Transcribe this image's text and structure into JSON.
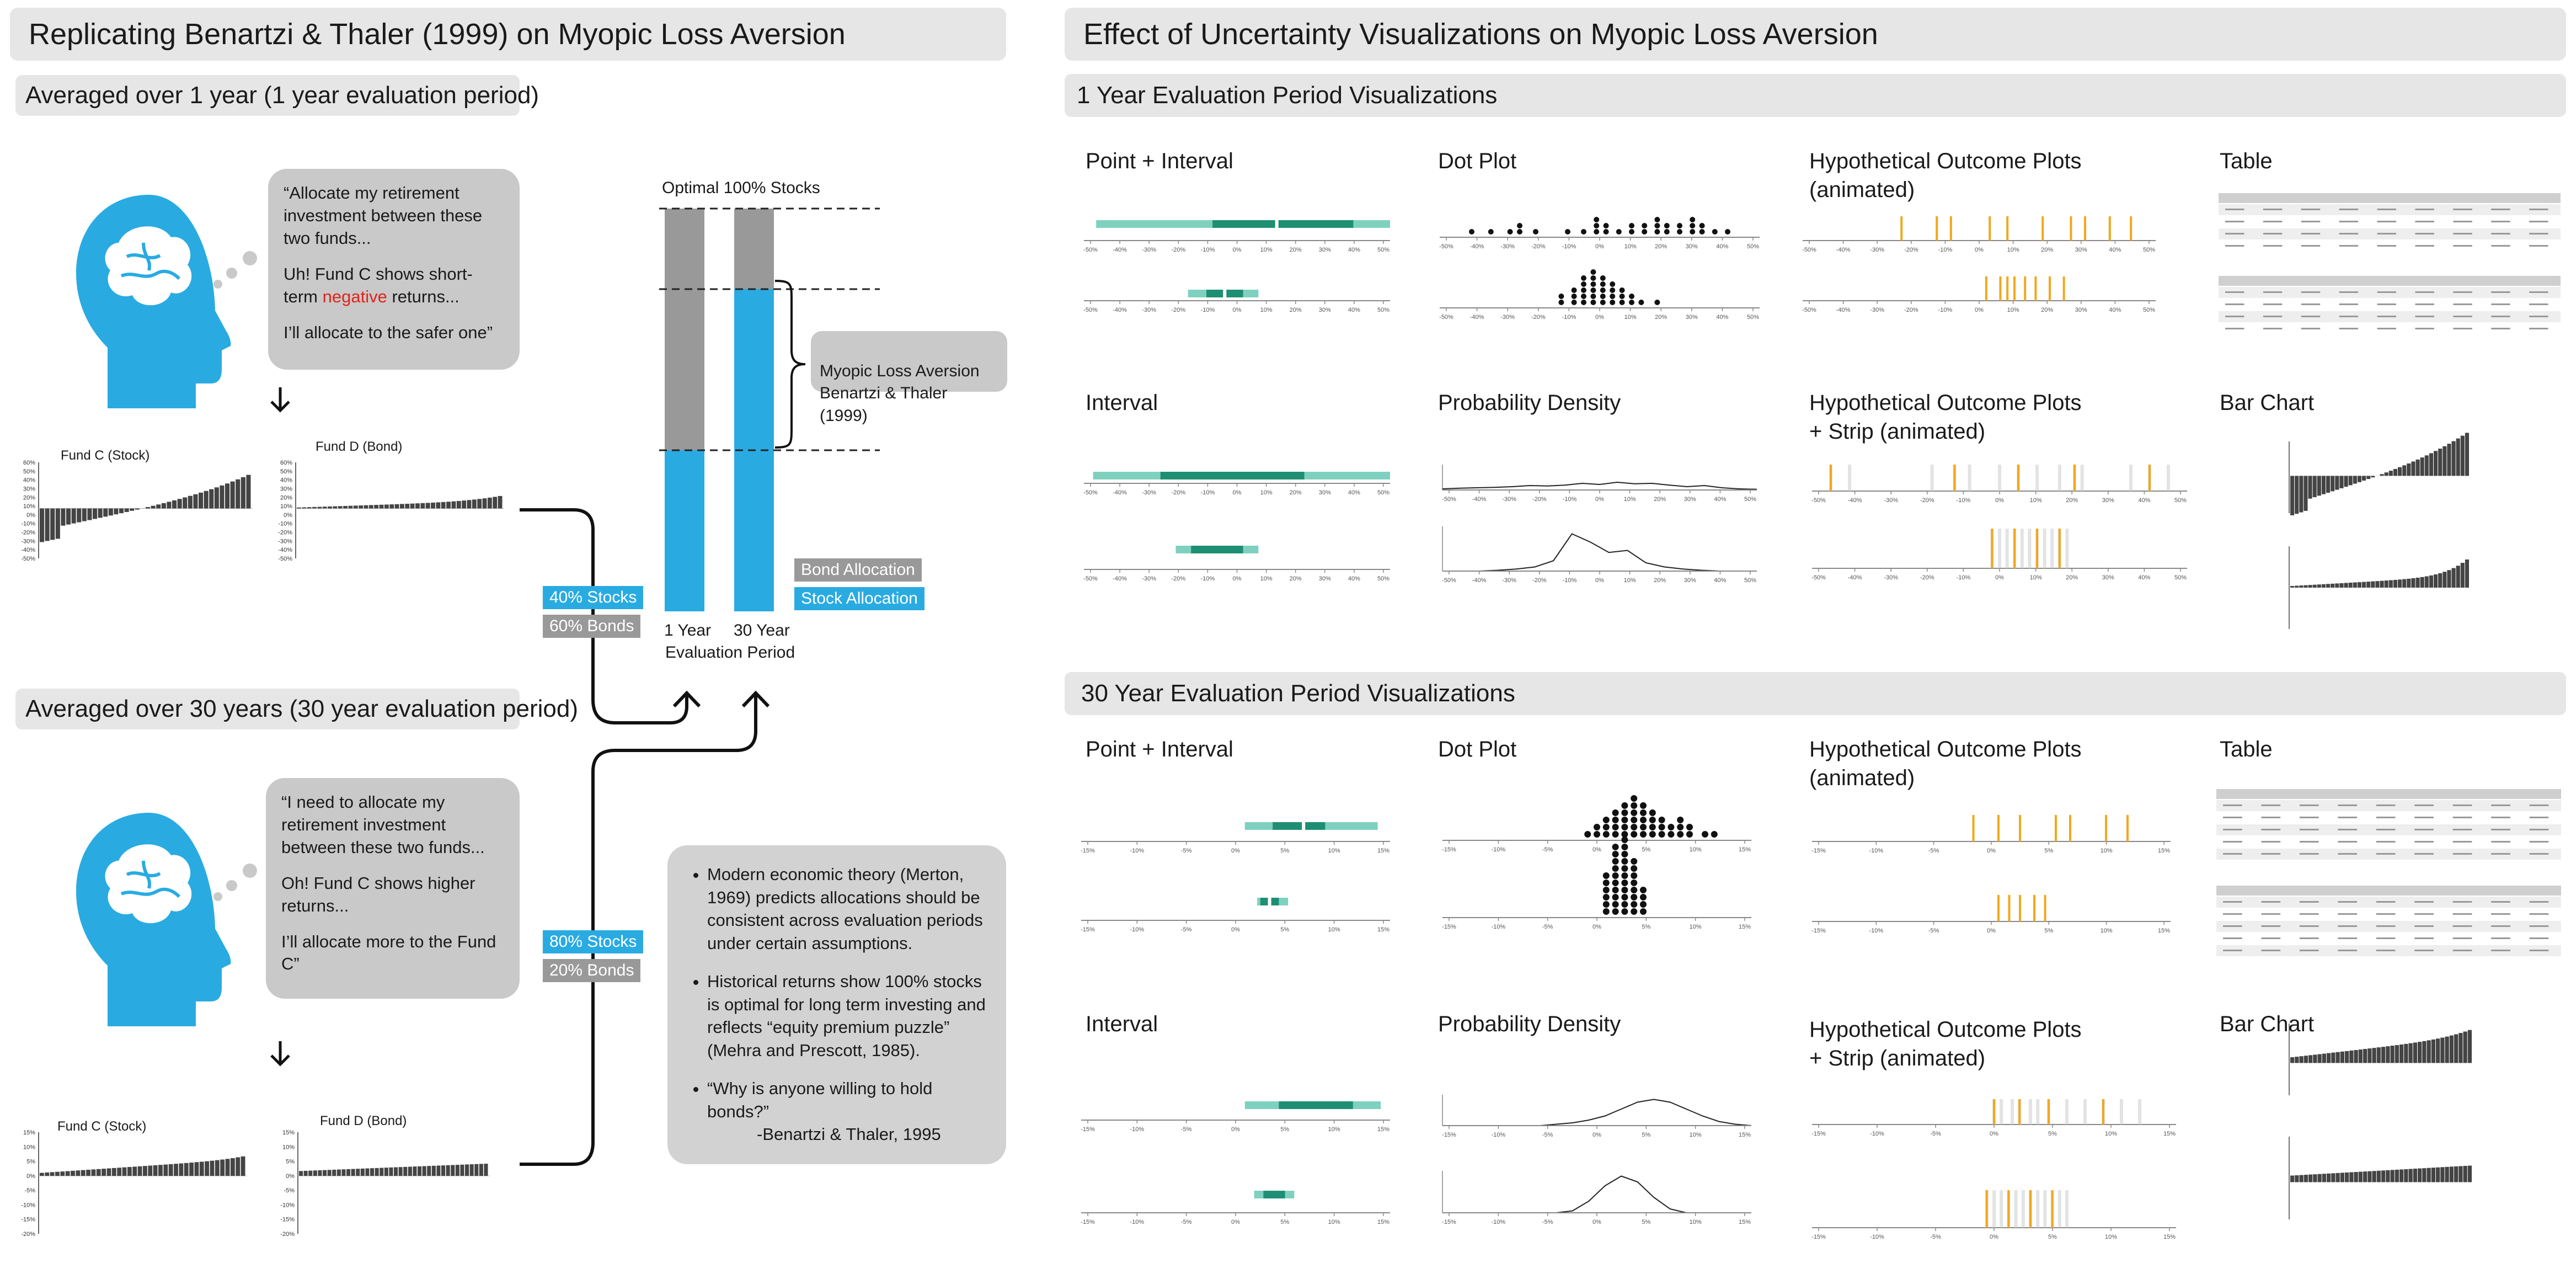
{
  "left": {
    "title": "Replicating Benartzi & Thaler (1999) on Myopic Loss Aversion",
    "section1": {
      "header": "Averaged over 1 year (1 year evaluation period)",
      "quote": [
        "“Allocate my retirement investment between these two funds...",
        "Uh! Fund C shows short-term",
        "negative",
        " returns...",
        "I’ll allocate to the safer one”"
      ],
      "fund_c": "Fund C (Stock)",
      "fund_d": "Fund D (Bond)",
      "fund_c_ticks": [
        "60%",
        "50%",
        "40%",
        "30%",
        "20%",
        "10%",
        "0%",
        "-10%",
        "-20%",
        "-30%",
        "-40%",
        "-50%"
      ],
      "fund_d_ticks": [
        "60%",
        "50%",
        "40%",
        "30%",
        "20%",
        "10%",
        "0%",
        "-10%",
        "-20%",
        "-30%",
        "-40%",
        "-50%"
      ],
      "stocks": "40% Stocks",
      "bonds": "60% Bonds"
    },
    "section2": {
      "header": "Averaged over 30 years (30 year evaluation period)",
      "quote": [
        "“I need to allocate my retirement investment between these two funds...",
        "Oh! Fund C shows higher returns...",
        "I’ll allocate more to the Fund C”"
      ],
      "fund_c": "Fund C (Stock)",
      "fund_d": "Fund D (Bond)",
      "fund_c_ticks": [
        "15%",
        "10%",
        "5%",
        "0%",
        "-5%",
        "-10%",
        "-15%",
        "-20%"
      ],
      "fund_d_ticks": [
        "15%",
        "10%",
        "5%",
        "0%",
        "-5%",
        "-10%",
        "-15%",
        "-20%"
      ],
      "stocks": "80% Stocks",
      "bonds": "20% Bonds"
    },
    "allocation": {
      "optimal_label": "Optimal 100% Stocks",
      "myopic_label": "Myopic Loss Aversion\nBenartzi & Thaler (1999)",
      "bar1_label": "1 Year",
      "bar2_label": "30 Year",
      "period_label": "Evaluation Period",
      "legend_bond": "Bond  Allocation",
      "legend_stock": "Stock  Allocation",
      "bars": [
        {
          "name": "1 Year",
          "stock_pct": 40,
          "bond_pct": 60
        },
        {
          "name": "30 Year",
          "stock_pct": 80,
          "bond_pct": 20
        }
      ]
    },
    "notes": [
      "Modern economic theory (Merton, 1969) predicts allocations should be consistent across evaluation periods under certain assumptions.",
      "Historical returns show 100% stocks is optimal for long term investing and reflects “equity premium puzzle” (Mehra and Prescott, 1985).",
      "“Why is anyone willing to hold bonds?”",
      "-Benartzi & Thaler, 1995"
    ]
  },
  "right": {
    "title": "Effect of Uncertainty Visualizations on Myopic Loss Aversion",
    "section1": {
      "header": "1 Year Evaluation Period Visualizations",
      "panels": [
        "Point + Interval",
        "Dot Plot",
        "Hypothetical Outcome Plots\n(animated)",
        "Table",
        "Interval",
        "Probability Density",
        "Hypothetical Outcome Plots\n+ Strip (animated)",
        "Bar Chart"
      ]
    },
    "section2": {
      "header": "30 Year Evaluation Period Visualizations",
      "panels": [
        "Point + Interval",
        "Dot Plot",
        "Hypothetical Outcome Plots\n(animated)",
        "Table",
        "Interval",
        "Probability Density",
        "Hypothetical Outcome Plots\n+ Strip (animated)",
        "Bar Chart"
      ]
    },
    "axis_ticks_1y": [
      "-50%",
      "-40%",
      "-30%",
      "-20%",
      "-10%",
      "0%",
      "10%",
      "20%",
      "30%",
      "40%",
      "50%"
    ],
    "axis_ticks_30y": [
      "-15%",
      "-10%",
      "-5%",
      "0%",
      "5%",
      "10%",
      "15%"
    ]
  },
  "colors": {
    "blue": "#29abe2",
    "gray": "#999999",
    "teal_light": "#7fd1bf",
    "teal_dark": "#1f8f74",
    "orange": "#f2a71b",
    "bar_dark": "#444444",
    "negative": "#e2231a"
  }
}
